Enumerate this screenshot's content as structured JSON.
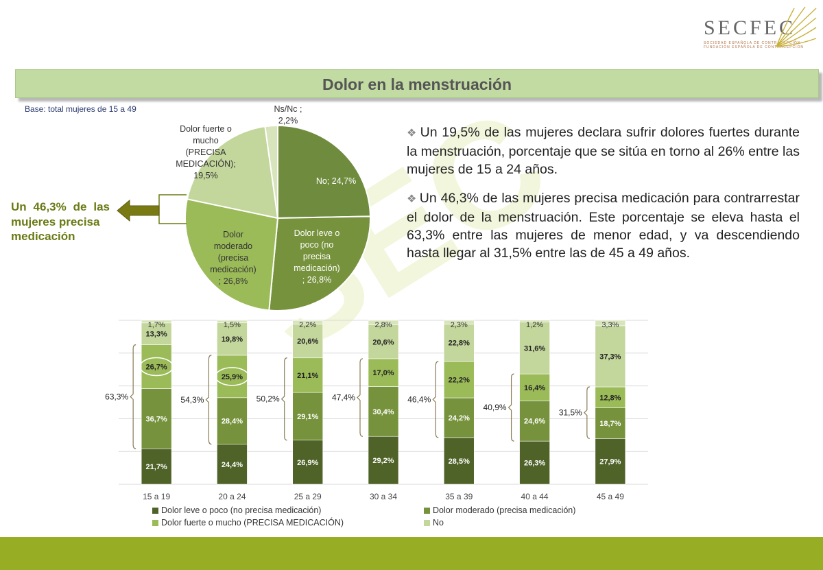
{
  "logo": {
    "text": "SECFEC",
    "sub1": "SOCIEDAD ESPAÑOLA DE CONTRACEPCIÓN",
    "sub2": "FUNDACIÓN ESPAÑOLA DE CONTRACEPCIÓN"
  },
  "watermark": "SEC",
  "title": "Dolor en la menstruación",
  "base_note": "Base: total mujeres de 15 a 49",
  "bullets": [
    "Un 19,5% de las mujeres declara sufrir dolores fuertes durante la menstruación, porcentaje que se sitúa en torno al 26% entre las mujeres de 15 a 24 años.",
    "Un 46,3% de las mujeres precisa medicación para contrarrestar el dolor de la menstruación. Este porcentaje se eleva hasta el 63,3% entre las mujeres de menor edad, y va descendiendo hasta llegar al 31,5% entre las de 45 a 49 años."
  ],
  "callout": {
    "line1": "Un 46,3% de las mujeres precisa",
    "line2": "medicación"
  },
  "colors": {
    "leve": "#4f6228",
    "moderado": "#76923c",
    "fuerte": "#9bbb59",
    "no": "#c3d69b",
    "nsnc": "#d8e4bc"
  },
  "chart_data": [
    {
      "type": "pie",
      "slices": [
        {
          "name": "No",
          "value": 24.7,
          "label": [
            "No; 24,7%"
          ]
        },
        {
          "name": "Dolor leve o poco (no precisa medicación)",
          "value": 26.8,
          "label": [
            "Dolor leve o",
            "poco (no",
            "precisa",
            "medicación)",
            "; 26,8%"
          ]
        },
        {
          "name": "Dolor moderado (precisa medicación)",
          "value": 26.8,
          "label": [
            "Dolor",
            "moderado",
            "(precisa",
            "medicación)",
            "; 26,8%"
          ]
        },
        {
          "name": "Dolor fuerte o mucho (PRECISA MEDICACIÓN)",
          "value": 19.5,
          "label": [
            "Dolor fuerte o",
            "mucho",
            "(PRECISA",
            "MEDICACIÓN);",
            "19,5%"
          ]
        },
        {
          "name": "Ns/Nc",
          "value": 2.2,
          "label": [
            "Ns/Nc ;",
            "2,2%"
          ]
        }
      ]
    },
    {
      "type": "bar",
      "stacked": true,
      "categories": [
        "15 a 19",
        "20 a 24",
        "25 a 29",
        "30 a 34",
        "35 a 39",
        "40 a 44",
        "45 a 49"
      ],
      "series": [
        {
          "name": "Dolor leve o poco (no precisa medicación)",
          "values": [
            21.7,
            24.4,
            26.9,
            29.2,
            28.5,
            26.3,
            27.9
          ],
          "labels": [
            "21,7%",
            "24,4%",
            "26,9%",
            "29,2%",
            "28,5%",
            "26,3%",
            "27,9%"
          ]
        },
        {
          "name": "Dolor moderado (precisa medicación)",
          "values": [
            36.7,
            28.4,
            29.1,
            30.4,
            24.2,
            24.6,
            18.7
          ],
          "labels": [
            "36,7%",
            "28,4%",
            "29,1%",
            "30,4%",
            "24,2%",
            "24,6%",
            "18,7%"
          ]
        },
        {
          "name": "Dolor fuerte o mucho (PRECISA MEDICACIÓN)",
          "values": [
            26.7,
            25.9,
            21.1,
            17.0,
            22.2,
            16.4,
            12.8
          ],
          "labels": [
            "26,7%",
            "25,9%",
            "21,1%",
            "17,0%",
            "22,2%",
            "16,4%",
            "12,8%"
          ]
        },
        {
          "name": "No",
          "values": [
            13.3,
            19.8,
            20.6,
            20.6,
            22.8,
            31.6,
            37.3
          ],
          "labels": [
            "13,3%",
            "19,8%",
            "20,6%",
            "20,6%",
            "22,8%",
            "31,6%",
            "37,3%"
          ]
        },
        {
          "name": "",
          "values": [
            1.7,
            1.5,
            2.2,
            2.8,
            2.3,
            1.2,
            3.3
          ],
          "labels": [
            "1,7%",
            "1,5%",
            "2,2%",
            "2,8%",
            "2,3%",
            "1,2%",
            "3,3%"
          ]
        }
      ],
      "medication_totals": [
        "63,3%",
        "54,3%",
        "50,2%",
        "47,4%",
        "46,4%",
        "40,9%",
        "31,5%"
      ],
      "circled": [
        "15 a 19",
        "20 a 24"
      ],
      "ylim": [
        0,
        100
      ],
      "grid": true,
      "legend": "bottom"
    }
  ]
}
